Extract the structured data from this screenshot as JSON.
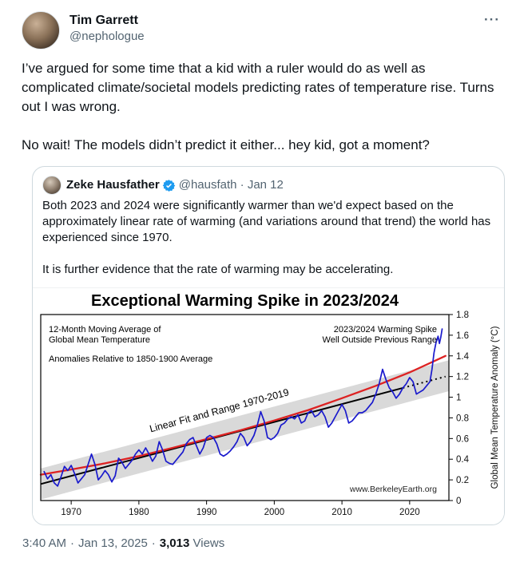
{
  "tweet": {
    "author": {
      "name": "Tim Garrett",
      "handle": "@nephologue"
    },
    "more_glyph": "···",
    "text_p1": "I’ve argued for some time that a kid with a ruler would do as well as complicated climate/societal models predicting rates of temperature rise. Turns out I was wrong.",
    "text_p2": "No wait! The models didn’t predict it either... hey kid, got a moment?"
  },
  "quote": {
    "author": {
      "name": "Zeke Hausfather",
      "meta": "@hausfath · Jan 12"
    },
    "text_p1": "Both 2023 and 2024 were significantly warmer than we'd expect based on the approximately linear rate of warming (and variations around that trend) the world has experienced since 1970.",
    "text_p2": "It is further evidence that the rate of warming may be accelerating."
  },
  "footer": {
    "time": "3:40 AM",
    "date": "Jan 13, 2025",
    "separator": "·",
    "views_count": "3,013",
    "views_label": "Views"
  },
  "colors": {
    "text": "#0f1419",
    "secondary_text": "#536471",
    "card_border": "#cfd9de",
    "verified_blue": "#1d9bf0",
    "chart_blue": "#1a1acd",
    "chart_red": "#dd2222",
    "chart_black": "#000000",
    "chart_band": "#d9d9d9"
  },
  "chart_data": {
    "type": "line",
    "title": "Exceptional Warming Spike in 2023/2024",
    "ylabel": "Global Mean Temperature Anomaly (°C)",
    "watermark": "www.BerkeleyEarth.org",
    "xlim": [
      1965.5,
      2025.8
    ],
    "ylim": [
      0,
      1.8
    ],
    "x_ticks": [
      1970,
      1980,
      1990,
      2000,
      2010,
      2020
    ],
    "x_tick_labels": [
      "1970",
      "1980",
      "1990",
      "2000",
      "2010",
      "2020"
    ],
    "y_ticks": [
      0,
      0.2,
      0.4,
      0.6,
      0.8,
      1.0,
      1.2,
      1.4,
      1.6,
      1.8
    ],
    "y_tick_labels": [
      "0",
      "0.2",
      "0.4",
      "0.6",
      "0.8",
      "1",
      "1.2",
      "1.4",
      "1.6",
      "1.8"
    ],
    "grid": false,
    "legend": "none",
    "annotations": {
      "moving_avg_line1": "12-Month Moving Average of",
      "moving_avg_line2": "Global Mean Temperature",
      "anomalies": "Anomalies Relative to 1850-1900 Average",
      "spike_line1": "2023/2024 Warming Spike",
      "spike_line2": "Well Outside Previous Range",
      "linear_label": "Linear Fit and Range 1970-2019"
    },
    "band": {
      "name": "Range 1970-2019",
      "x": [
        1965.5,
        2025.8
      ],
      "center": [
        0.16,
        1.208
      ],
      "halfwidth": 0.15,
      "color": "#d9d9d9"
    },
    "linear_fit": {
      "name": "Linear Fit 1970-2019",
      "color": "#000000",
      "x": [
        1965.5,
        2019
      ],
      "y": [
        0.16,
        1.09
      ],
      "dashed_extension": {
        "x": [
          2019,
          2025.3
        ],
        "y": [
          1.09,
          1.2
        ]
      }
    },
    "accelerating_fit": {
      "name": "Accelerating (quadratic) fit",
      "color": "#dd2222",
      "points": [
        [
          1965.5,
          0.25
        ],
        [
          1970,
          0.3
        ],
        [
          1975,
          0.36
        ],
        [
          1980,
          0.43
        ],
        [
          1985,
          0.51
        ],
        [
          1990,
          0.595
        ],
        [
          1995,
          0.68
        ],
        [
          2000,
          0.775
        ],
        [
          2005,
          0.875
        ],
        [
          2010,
          0.99
        ],
        [
          2015,
          1.11
        ],
        [
          2020,
          1.24
        ],
        [
          2025.3,
          1.4
        ]
      ]
    },
    "series": {
      "name": "12-Month Moving Average of Global Mean Temperature",
      "color": "#1a1acd",
      "points": [
        [
          1966.0,
          0.28
        ],
        [
          1966.5,
          0.21
        ],
        [
          1967.0,
          0.25
        ],
        [
          1967.5,
          0.17
        ],
        [
          1968.0,
          0.14
        ],
        [
          1968.5,
          0.23
        ],
        [
          1969.0,
          0.33
        ],
        [
          1969.5,
          0.29
        ],
        [
          1970.0,
          0.34
        ],
        [
          1970.5,
          0.26
        ],
        [
          1971.0,
          0.17
        ],
        [
          1971.5,
          0.21
        ],
        [
          1972.0,
          0.25
        ],
        [
          1972.5,
          0.35
        ],
        [
          1973.0,
          0.45
        ],
        [
          1973.5,
          0.35
        ],
        [
          1974.0,
          0.2
        ],
        [
          1974.5,
          0.24
        ],
        [
          1975.0,
          0.29
        ],
        [
          1975.5,
          0.25
        ],
        [
          1976.0,
          0.18
        ],
        [
          1976.5,
          0.24
        ],
        [
          1977.0,
          0.41
        ],
        [
          1977.5,
          0.37
        ],
        [
          1978.0,
          0.31
        ],
        [
          1978.5,
          0.35
        ],
        [
          1979.0,
          0.39
        ],
        [
          1979.5,
          0.45
        ],
        [
          1980.0,
          0.49
        ],
        [
          1980.5,
          0.45
        ],
        [
          1981.0,
          0.51
        ],
        [
          1981.5,
          0.45
        ],
        [
          1982.0,
          0.38
        ],
        [
          1982.5,
          0.43
        ],
        [
          1983.0,
          0.57
        ],
        [
          1983.5,
          0.49
        ],
        [
          1984.0,
          0.38
        ],
        [
          1984.5,
          0.36
        ],
        [
          1985.0,
          0.35
        ],
        [
          1985.5,
          0.39
        ],
        [
          1986.0,
          0.43
        ],
        [
          1986.5,
          0.47
        ],
        [
          1987.0,
          0.55
        ],
        [
          1987.5,
          0.59
        ],
        [
          1988.0,
          0.61
        ],
        [
          1988.5,
          0.53
        ],
        [
          1989.0,
          0.45
        ],
        [
          1989.5,
          0.51
        ],
        [
          1990.0,
          0.61
        ],
        [
          1990.5,
          0.63
        ],
        [
          1991.0,
          0.61
        ],
        [
          1991.5,
          0.55
        ],
        [
          1992.0,
          0.45
        ],
        [
          1992.5,
          0.43
        ],
        [
          1993.0,
          0.45
        ],
        [
          1993.5,
          0.48
        ],
        [
          1994.0,
          0.52
        ],
        [
          1994.5,
          0.57
        ],
        [
          1995.0,
          0.65
        ],
        [
          1995.5,
          0.61
        ],
        [
          1996.0,
          0.53
        ],
        [
          1996.5,
          0.57
        ],
        [
          1997.0,
          0.63
        ],
        [
          1997.5,
          0.73
        ],
        [
          1998.0,
          0.86
        ],
        [
          1998.5,
          0.77
        ],
        [
          1999.0,
          0.61
        ],
        [
          1999.5,
          0.59
        ],
        [
          2000.0,
          0.61
        ],
        [
          2000.5,
          0.65
        ],
        [
          2001.0,
          0.73
        ],
        [
          2001.5,
          0.75
        ],
        [
          2002.0,
          0.79
        ],
        [
          2002.5,
          0.81
        ],
        [
          2003.0,
          0.79
        ],
        [
          2003.5,
          0.83
        ],
        [
          2004.0,
          0.75
        ],
        [
          2004.5,
          0.77
        ],
        [
          2005.0,
          0.85
        ],
        [
          2005.5,
          0.87
        ],
        [
          2006.0,
          0.81
        ],
        [
          2006.5,
          0.83
        ],
        [
          2007.0,
          0.87
        ],
        [
          2007.5,
          0.81
        ],
        [
          2008.0,
          0.71
        ],
        [
          2008.5,
          0.75
        ],
        [
          2009.0,
          0.81
        ],
        [
          2009.5,
          0.87
        ],
        [
          2010.0,
          0.93
        ],
        [
          2010.5,
          0.87
        ],
        [
          2011.0,
          0.75
        ],
        [
          2011.5,
          0.77
        ],
        [
          2012.0,
          0.81
        ],
        [
          2012.5,
          0.85
        ],
        [
          2013.0,
          0.85
        ],
        [
          2013.5,
          0.87
        ],
        [
          2014.0,
          0.91
        ],
        [
          2014.5,
          0.95
        ],
        [
          2015.0,
          1.03
        ],
        [
          2015.5,
          1.13
        ],
        [
          2016.0,
          1.27
        ],
        [
          2016.5,
          1.17
        ],
        [
          2017.0,
          1.09
        ],
        [
          2017.5,
          1.05
        ],
        [
          2018.0,
          0.99
        ],
        [
          2018.5,
          1.03
        ],
        [
          2019.0,
          1.09
        ],
        [
          2019.5,
          1.13
        ],
        [
          2020.0,
          1.19
        ],
        [
          2020.5,
          1.15
        ],
        [
          2021.0,
          1.03
        ],
        [
          2021.5,
          1.05
        ],
        [
          2022.0,
          1.07
        ],
        [
          2022.5,
          1.11
        ],
        [
          2023.0,
          1.15
        ],
        [
          2023.3,
          1.27
        ],
        [
          2023.6,
          1.43
        ],
        [
          2023.9,
          1.53
        ],
        [
          2024.2,
          1.59
        ],
        [
          2024.4,
          1.52
        ],
        [
          2024.6,
          1.58
        ],
        [
          2024.8,
          1.66
        ]
      ]
    }
  }
}
